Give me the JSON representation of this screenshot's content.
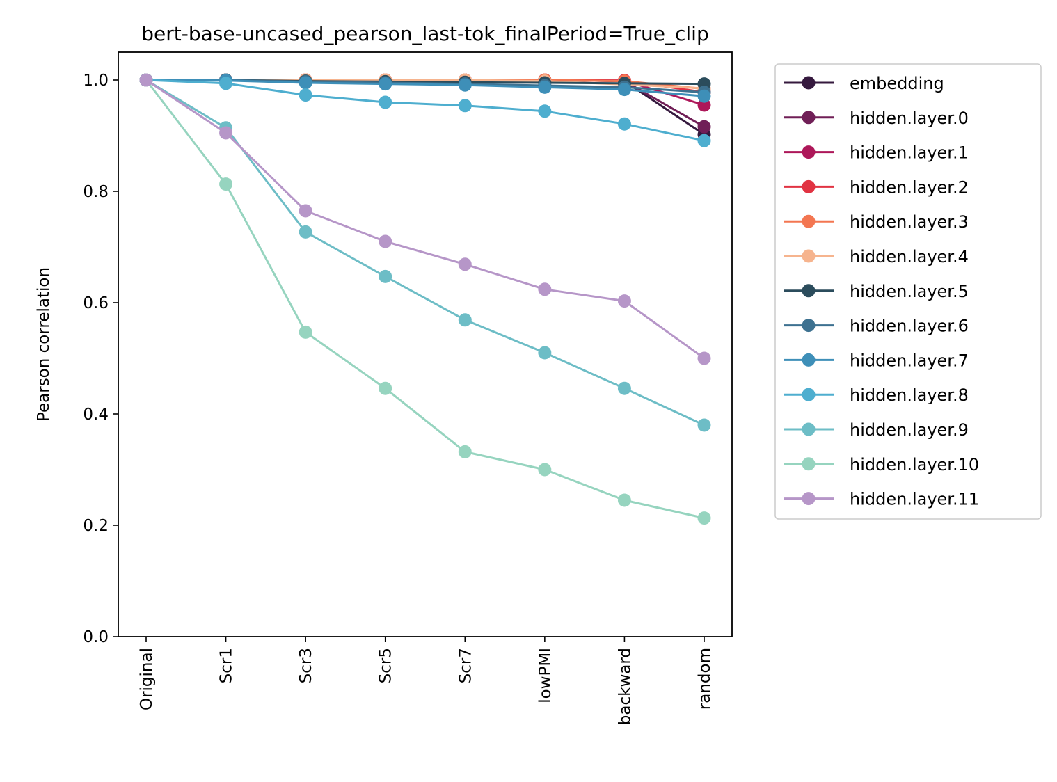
{
  "chart_data": {
    "type": "line",
    "title": "bert-base-uncased_pearson_last-tok_finalPeriod=True_clip",
    "xlabel": "",
    "ylabel": "Pearson correlation",
    "ylim": [
      0,
      1.05
    ],
    "yticks": [
      "0.0",
      "0.2",
      "0.4",
      "0.6",
      "0.8",
      "1.0"
    ],
    "categories": [
      "Original",
      "Scr1",
      "Scr3",
      "Scr5",
      "Scr7",
      "lowPMI",
      "backward",
      "random"
    ],
    "grid": false,
    "legend": "outside-right",
    "series": [
      {
        "name": "embedding",
        "color": "#35193e",
        "values": [
          1.0,
          1.0,
          1.0,
          1.0,
          1.0,
          1.0,
          0.998,
          0.902
        ]
      },
      {
        "name": "hidden.layer.0",
        "color": "#701f57",
        "values": [
          1.0,
          1.0,
          1.0,
          1.0,
          1.0,
          1.0,
          0.998,
          0.916
        ]
      },
      {
        "name": "hidden.layer.1",
        "color": "#ad1759",
        "values": [
          1.0,
          1.0,
          1.0,
          1.0,
          1.0,
          1.0,
          0.999,
          0.955
        ]
      },
      {
        "name": "hidden.layer.2",
        "color": "#e13342",
        "values": [
          1.0,
          1.0,
          1.0,
          1.0,
          1.0,
          1.0,
          0.999,
          0.978
        ]
      },
      {
        "name": "hidden.layer.3",
        "color": "#f37651",
        "values": [
          1.0,
          1.0,
          1.0,
          1.0,
          1.0,
          1.0,
          0.998,
          0.984
        ]
      },
      {
        "name": "hidden.layer.4",
        "color": "#f6b48e",
        "values": [
          1.0,
          1.0,
          1.0,
          1.0,
          1.0,
          0.998,
          0.992,
          0.985
        ]
      },
      {
        "name": "hidden.layer.5",
        "color": "#2b4c5c",
        "values": [
          1.0,
          1.0,
          0.998,
          0.997,
          0.996,
          0.995,
          0.994,
          0.993
        ]
      },
      {
        "name": "hidden.layer.6",
        "color": "#3d7190",
        "values": [
          1.0,
          1.0,
          0.997,
          0.995,
          0.993,
          0.99,
          0.987,
          0.978
        ]
      },
      {
        "name": "hidden.layer.7",
        "color": "#3e8fb8",
        "values": [
          1.0,
          0.999,
          0.995,
          0.993,
          0.991,
          0.987,
          0.983,
          0.971
        ]
      },
      {
        "name": "hidden.layer.8",
        "color": "#4eaecf",
        "values": [
          1.0,
          0.994,
          0.973,
          0.96,
          0.954,
          0.944,
          0.921,
          0.891
        ]
      },
      {
        "name": "hidden.layer.9",
        "color": "#6dbdc6",
        "values": [
          1.0,
          0.914,
          0.727,
          0.647,
          0.569,
          0.51,
          0.446,
          0.38
        ]
      },
      {
        "name": "hidden.layer.10",
        "color": "#96d4bf",
        "values": [
          1.0,
          0.813,
          0.547,
          0.446,
          0.332,
          0.3,
          0.245,
          0.213
        ]
      },
      {
        "name": "hidden.layer.11",
        "color": "#b696c8",
        "values": [
          1.0,
          0.905,
          0.765,
          0.71,
          0.669,
          0.624,
          0.603,
          0.5
        ]
      }
    ]
  }
}
